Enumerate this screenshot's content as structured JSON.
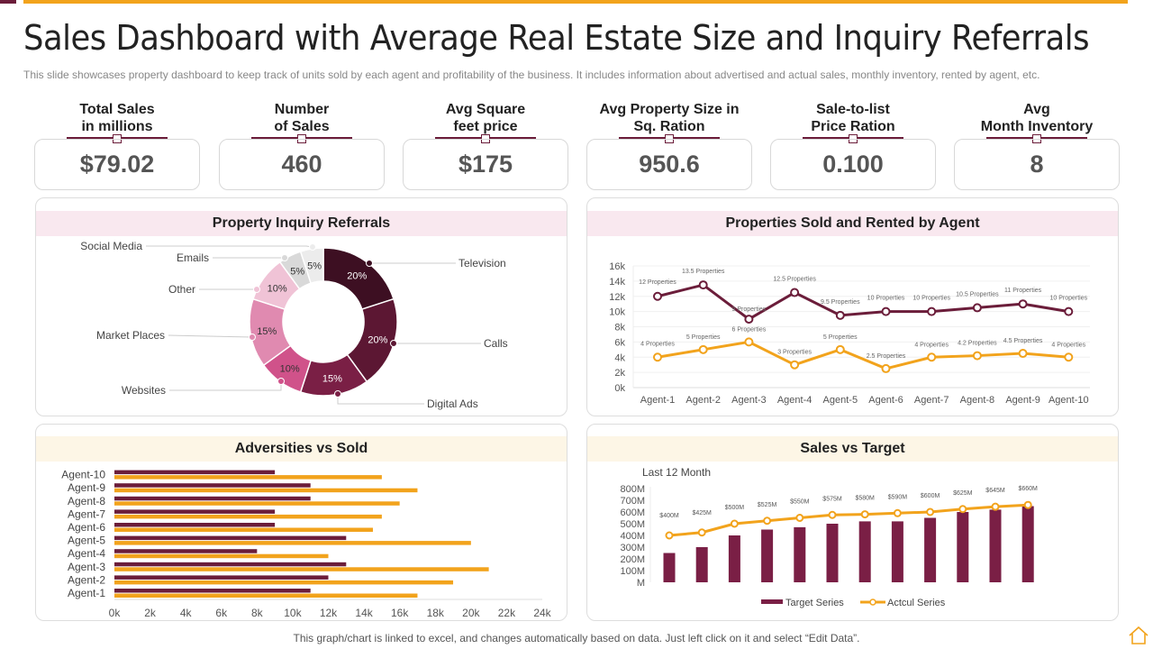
{
  "title": "Sales Dashboard with Average Real Estate Size and Inquiry Referrals",
  "subtitle": "This slide showcases property dashboard to keep track of units sold by each agent and profitability of the business. It includes information about advertised and actual sales, monthly inventory, rented by agent, etc.",
  "kpis": [
    {
      "label": "Total Sales\nin millions",
      "value": "$79.02"
    },
    {
      "label": "Number\nof Sales",
      "value": "460"
    },
    {
      "label": "Avg Square\nfeet price",
      "value": "$175"
    },
    {
      "label": "Avg Property Size in\nSq. Ration",
      "value": "950.6"
    },
    {
      "label": "Sale-to-list\nPrice Ration",
      "value": "0.100"
    },
    {
      "label": "Avg\nMonth Inventory",
      "value": "8"
    }
  ],
  "colors": {
    "maroon": "#6b1d3a",
    "orange": "#f2a31c",
    "pink_header": "#f9e8ef",
    "cream_header": "#fdf6e6"
  },
  "footer": "This graph/chart is linked to excel, and changes automatically based on data. Just left click on it and select “Edit Data”.",
  "home_icon": "home-icon",
  "chart_data": [
    {
      "type": "pie",
      "title": "Property Inquiry Referrals",
      "donut": true,
      "categories": [
        "Television",
        "Calls",
        "Digital Ads",
        "Websites",
        "Market Places",
        "Other",
        "Emails",
        "Social Media"
      ],
      "values": [
        20,
        20,
        15,
        10,
        15,
        10,
        5,
        5
      ],
      "labels": [
        "20%",
        "20%",
        "15%",
        "10%",
        "15%",
        "10%",
        "5%",
        "5%"
      ],
      "colors": [
        "#3d0f22",
        "#5c1733",
        "#7a1f45",
        "#d0528a",
        "#e08ab0",
        "#f0c3d6",
        "#d9d9d9",
        "#ececec"
      ]
    },
    {
      "type": "line",
      "title": "Properties Sold and Rented by Agent",
      "categories": [
        "Agent-1",
        "Agent-2",
        "Agent-3",
        "Agent-4",
        "Agent-5",
        "Agent-6",
        "Agent-7",
        "Agent-8",
        "Agent-9",
        "Agent-10"
      ],
      "yticks": [
        "0k",
        "2k",
        "4k",
        "6k",
        "8k",
        "10k",
        "12k",
        "14k",
        "16k"
      ],
      "ylim": [
        0,
        16
      ],
      "grid": true,
      "series": [
        {
          "color": "#6b1d3a",
          "values": [
            12,
            13.5,
            9,
            12.5,
            9.5,
            10,
            10,
            10.5,
            11,
            10
          ],
          "labels": [
            "12 Properties",
            "13.5 Properties",
            "9 Properties",
            "12.5 Properties",
            "9.5 Properties",
            "10 Properties",
            "10 Properties",
            "10.5 Properties",
            "11 Properties",
            "10 Properties"
          ]
        },
        {
          "color": "#f2a31c",
          "values": [
            4,
            5,
            6,
            3,
            5,
            2.5,
            4,
            4.2,
            4.5,
            4
          ],
          "labels": [
            "4 Properties",
            "5 Properties",
            "6 Properties",
            "3 Properties",
            "5 Properties",
            "2.5 Properties",
            "4 Properties",
            "4.2 Properties",
            "4.5 Properties",
            "4 Properties"
          ]
        }
      ]
    },
    {
      "type": "bar",
      "orientation": "horizontal",
      "title": "Adversities vs Sold",
      "categories": [
        "Agent-1",
        "Agent-2",
        "Agent-3",
        "Agent-4",
        "Agent-5",
        "Agent-6",
        "Agent-7",
        "Agent-8",
        "Agent-9",
        "Agent-10"
      ],
      "xticks": [
        "0k",
        "2k",
        "4k",
        "6k",
        "8k",
        "10k",
        "12k",
        "14k",
        "16k",
        "18k",
        "20k",
        "22k",
        "24k"
      ],
      "xlim": [
        0,
        24
      ],
      "series": [
        {
          "color": "#6b1d3a",
          "values": [
            11,
            12,
            13,
            8,
            13,
            9,
            9,
            11,
            11,
            9
          ]
        },
        {
          "color": "#f2a31c",
          "values": [
            17,
            19,
            21,
            12,
            20,
            14.5,
            15,
            16,
            17,
            15
          ]
        }
      ]
    },
    {
      "type": "bar",
      "title": "Sales vs Target",
      "subtitle": "Last 12 Month",
      "yticks": [
        "M",
        "100M",
        "200M",
        "300M",
        "400M",
        "500M",
        "600M",
        "700M",
        "800M"
      ],
      "ylim": [
        0,
        800
      ],
      "series": [
        {
          "name": "Target Series",
          "type": "bar",
          "color": "#7a1f45",
          "values": [
            250,
            300,
            400,
            450,
            470,
            500,
            520,
            520,
            550,
            600,
            620,
            650
          ]
        },
        {
          "name": "Actcul Series",
          "type": "line",
          "color": "#f2a31c",
          "values": [
            400,
            425,
            500,
            525,
            550,
            575,
            580,
            590,
            600,
            625,
            645,
            660
          ],
          "labels": [
            "$400M",
            "$425M",
            "$500M",
            "$525M",
            "$550M",
            "$575M",
            "$580M",
            "$590M",
            "$600M",
            "$625M",
            "$645M",
            "$660M"
          ]
        }
      ]
    }
  ]
}
